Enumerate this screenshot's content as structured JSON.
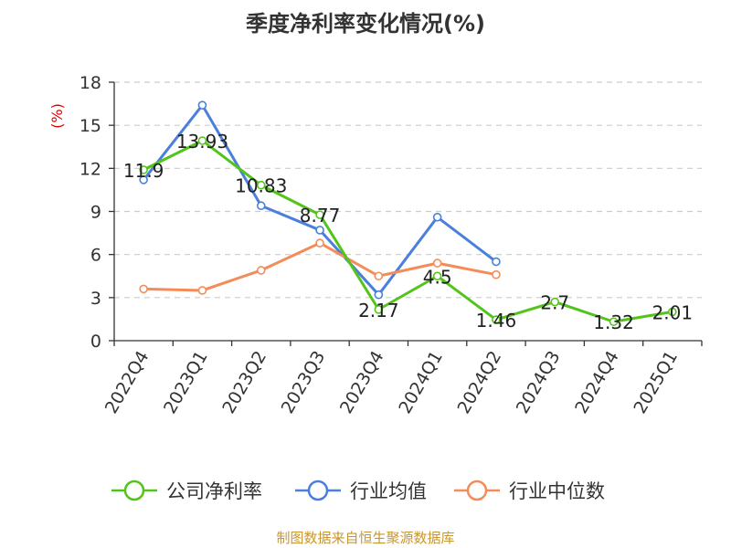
{
  "chart_data": {
    "type": "line",
    "title": "季度净利率变化情况(%)",
    "ylabel": "(%)",
    "ylim": [
      0,
      18
    ],
    "yticks": [
      "0",
      "3",
      "6",
      "9",
      "12",
      "15",
      "18"
    ],
    "categories": [
      "2022Q4",
      "2023Q1",
      "2023Q2",
      "2023Q3",
      "2023Q4",
      "2024Q1",
      "2024Q2",
      "2024Q3",
      "2024Q4",
      "2025Q1"
    ],
    "grid": true,
    "legend_position": "bottom",
    "series": [
      {
        "name": "公司净利率",
        "color": "#52c41a",
        "values": [
          11.9,
          13.93,
          10.83,
          8.77,
          2.17,
          4.5,
          1.46,
          2.7,
          1.32,
          2.01
        ],
        "labels": [
          "11.9",
          "13.93",
          "10.83",
          "8.77",
          "2.17",
          "4.5",
          "1.46",
          "2.7",
          "1.32",
          "2.01"
        ]
      },
      {
        "name": "行业均值",
        "color": "#4a7fdc",
        "values": [
          11.2,
          16.4,
          9.4,
          7.7,
          3.2,
          8.6,
          5.5,
          null,
          null,
          null
        ]
      },
      {
        "name": "行业中位数",
        "color": "#f48c5a",
        "values": [
          3.6,
          3.5,
          4.9,
          6.8,
          4.5,
          5.4,
          4.6,
          null,
          null,
          null
        ]
      }
    ]
  },
  "source": "制图数据来自恒生聚源数据库",
  "colors": {
    "axis": "#333333",
    "grid": "#cccccc",
    "unit": "#e00000",
    "source": "#c8962f"
  }
}
